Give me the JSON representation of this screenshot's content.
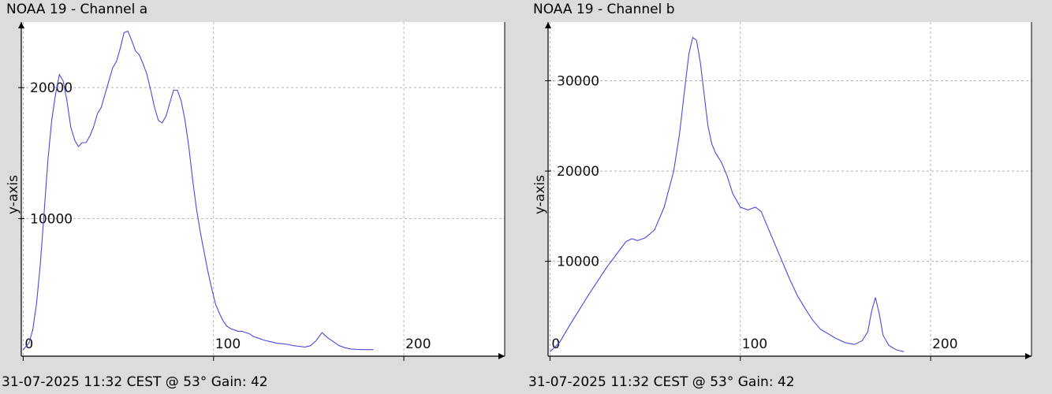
{
  "colors": {
    "background": "#dcdcdc",
    "plot_background": "#ffffff",
    "line": "#4a4adc",
    "grid": "#b4b4b4",
    "axis": "#000000"
  },
  "chart_data": [
    {
      "type": "line",
      "title": "NOAA 19 - Channel a",
      "footer": "31-07-2025 11:32 CEST @ 53° Gain: 42",
      "xlabel": "",
      "ylabel": "y-axis",
      "xlim": [
        -1,
        253
      ],
      "ylim": [
        -500,
        25000
      ],
      "xticks": [
        0,
        100,
        200
      ],
      "xtick_labels": [
        "0",
        "100",
        "200"
      ],
      "yticks": [
        10000,
        20000
      ],
      "ytick_labels": [
        "10000",
        "20000"
      ],
      "grid": true,
      "series": [
        {
          "x": [
            0,
            3,
            5,
            7,
            9,
            11,
            13,
            15,
            17,
            19,
            21,
            23,
            25,
            27,
            29,
            31,
            33,
            35,
            37,
            39,
            41,
            43,
            45,
            47,
            49,
            51,
            53,
            55,
            57,
            59,
            61,
            63,
            65,
            67,
            69,
            71,
            73,
            75,
            77,
            79,
            81,
            83,
            85,
            87,
            89,
            91,
            93,
            95,
            97,
            99,
            101,
            103,
            105,
            107,
            109,
            111,
            113,
            115,
            117,
            119,
            121,
            123,
            125,
            127,
            130,
            133,
            136,
            139,
            142,
            145,
            148,
            151,
            154,
            157,
            160,
            163,
            166,
            169,
            172,
            175,
            178,
            181,
            184
          ],
          "y": [
            0,
            500,
            1500,
            3500,
            6500,
            10500,
            14500,
            17500,
            19500,
            21000,
            20500,
            19000,
            17000,
            16000,
            15500,
            15800,
            15800,
            16300,
            17000,
            18000,
            18500,
            19500,
            20500,
            21500,
            22000,
            23000,
            24200,
            24300,
            23600,
            22800,
            22500,
            21800,
            21000,
            19800,
            18500,
            17500,
            17300,
            17800,
            18800,
            19800,
            19800,
            19000,
            17500,
            15500,
            13000,
            10800,
            9000,
            7500,
            6000,
            4700,
            3500,
            2800,
            2200,
            1800,
            1600,
            1500,
            1400,
            1400,
            1300,
            1200,
            1000,
            900,
            800,
            700,
            600,
            500,
            450,
            400,
            300,
            250,
            200,
            300,
            700,
            1300,
            900,
            600,
            300,
            150,
            50,
            20,
            5,
            0,
            0
          ]
        }
      ]
    },
    {
      "type": "line",
      "title": "NOAA 19 - Channel b",
      "footer": "31-07-2025 11:32 CEST @ 53° Gain: 42",
      "xlabel": "",
      "ylabel": "y-axis",
      "xlim": [
        -1,
        253
      ],
      "ylim": [
        -500,
        36500
      ],
      "xticks": [
        0,
        100,
        200
      ],
      "xtick_labels": [
        "0",
        "100",
        "200"
      ],
      "yticks": [
        10000,
        20000,
        30000
      ],
      "ytick_labels": [
        "10000",
        "20000",
        "30000"
      ],
      "grid": true,
      "series": [
        {
          "x": [
            0,
            5,
            10,
            15,
            20,
            25,
            30,
            35,
            40,
            43,
            46,
            50,
            55,
            60,
            65,
            68,
            71,
            73,
            75,
            77,
            79,
            81,
            83,
            85,
            87,
            90,
            93,
            96,
            100,
            104,
            108,
            111,
            114,
            118,
            122,
            126,
            130,
            134,
            138,
            142,
            146,
            150,
            155,
            160,
            164,
            167,
            169,
            171,
            173,
            175,
            178,
            182,
            186
          ],
          "y": [
            0,
            1000,
            2800,
            4500,
            6200,
            7800,
            9400,
            10800,
            12200,
            12500,
            12300,
            12600,
            13500,
            16000,
            20000,
            24000,
            29500,
            33000,
            34800,
            34500,
            32000,
            28500,
            25000,
            23000,
            22000,
            21000,
            19500,
            17500,
            16000,
            15700,
            16000,
            15500,
            14000,
            12000,
            10000,
            8000,
            6200,
            4800,
            3500,
            2500,
            2000,
            1500,
            1000,
            800,
            1200,
            2200,
            4500,
            6000,
            4200,
            1800,
            700,
            200,
            0
          ]
        }
      ]
    }
  ]
}
